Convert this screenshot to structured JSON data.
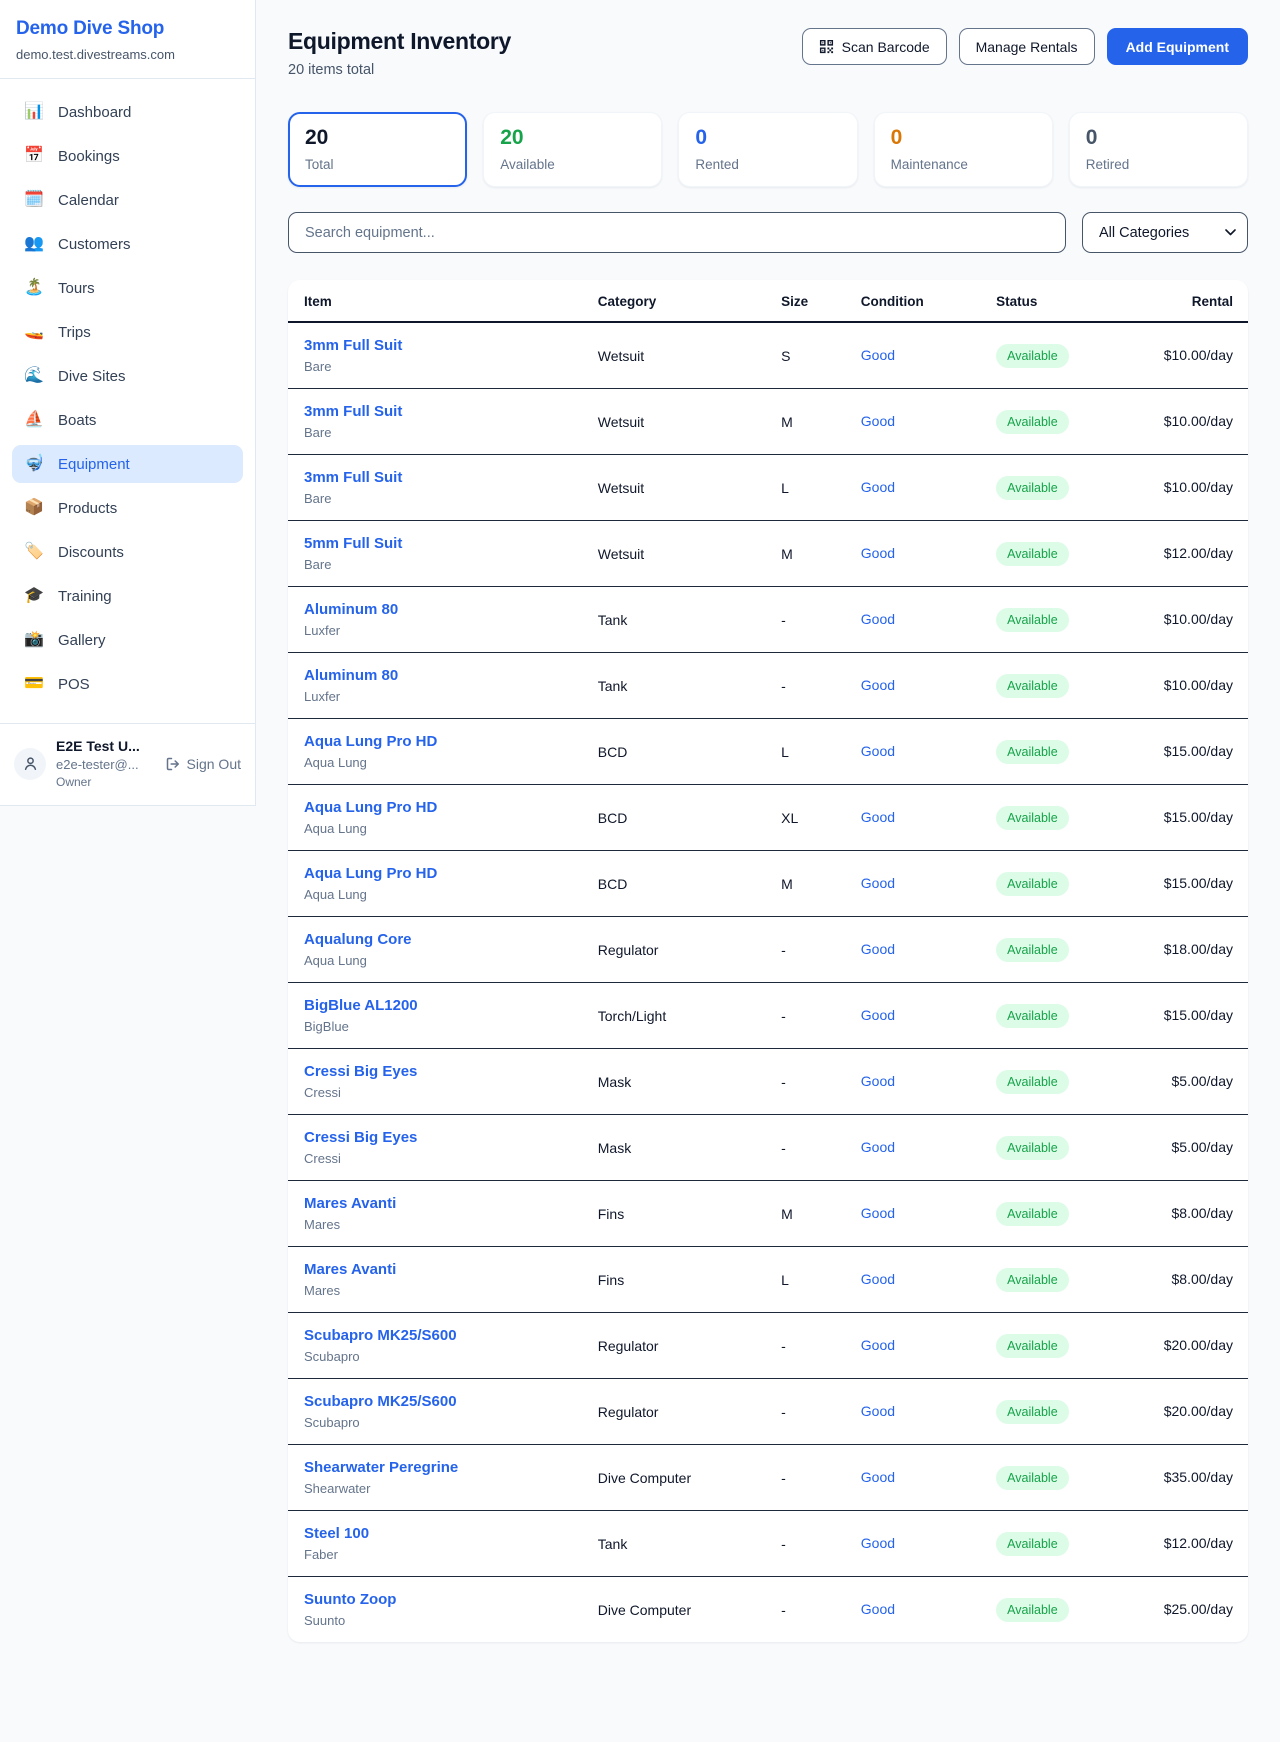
{
  "colors": {
    "accent": "#2563eb",
    "available_green": "#16a34a",
    "maintenance_orange": "#d97706",
    "retired_gray": "#475569"
  },
  "sidebar": {
    "brand": "Demo Dive Shop",
    "domain": "demo.test.divestreams.com",
    "items": [
      {
        "id": "dashboard",
        "label": "Dashboard",
        "icon": "📊",
        "icon_name": "bar-chart-icon",
        "active": false
      },
      {
        "id": "bookings",
        "label": "Bookings",
        "icon": "📅",
        "icon_name": "calendar-icon",
        "active": false
      },
      {
        "id": "calendar",
        "label": "Calendar",
        "icon": "🗓️",
        "icon_name": "spiral-calendar-icon",
        "active": false
      },
      {
        "id": "customers",
        "label": "Customers",
        "icon": "👥",
        "icon_name": "people-icon",
        "active": false
      },
      {
        "id": "tours",
        "label": "Tours",
        "icon": "🏝️",
        "icon_name": "island-icon",
        "active": false
      },
      {
        "id": "trips",
        "label": "Trips",
        "icon": "🚤",
        "icon_name": "speedboat-icon",
        "active": false
      },
      {
        "id": "dive-sites",
        "label": "Dive Sites",
        "icon": "🌊",
        "icon_name": "wave-icon",
        "active": false
      },
      {
        "id": "boats",
        "label": "Boats",
        "icon": "⛵",
        "icon_name": "sailboat-icon",
        "active": false
      },
      {
        "id": "equipment",
        "label": "Equipment",
        "icon": "🤿",
        "icon_name": "diving-mask-icon",
        "active": true
      },
      {
        "id": "products",
        "label": "Products",
        "icon": "📦",
        "icon_name": "package-icon",
        "active": false
      },
      {
        "id": "discounts",
        "label": "Discounts",
        "icon": "🏷️",
        "icon_name": "tag-icon",
        "active": false
      },
      {
        "id": "training",
        "label": "Training",
        "icon": "🎓",
        "icon_name": "graduation-cap-icon",
        "active": false
      },
      {
        "id": "gallery",
        "label": "Gallery",
        "icon": "📸",
        "icon_name": "camera-icon",
        "active": false
      },
      {
        "id": "pos",
        "label": "POS",
        "icon": "💳",
        "icon_name": "credit-card-icon",
        "active": false
      }
    ],
    "user": {
      "name": "E2E Test U...",
      "email": "e2e-tester@...",
      "role": "Owner",
      "signout_label": "Sign Out"
    }
  },
  "header": {
    "title": "Equipment Inventory",
    "subtitle": "20 items total",
    "scan_label": "Scan Barcode",
    "manage_label": "Manage Rentals",
    "add_label": "Add Equipment"
  },
  "stats": [
    {
      "value": "20",
      "label": "Total",
      "color": "#0f172a",
      "selected": true
    },
    {
      "value": "20",
      "label": "Available",
      "color": "#16a34a",
      "selected": false
    },
    {
      "value": "0",
      "label": "Rented",
      "color": "#2563eb",
      "selected": false
    },
    {
      "value": "0",
      "label": "Maintenance",
      "color": "#d97706",
      "selected": false
    },
    {
      "value": "0",
      "label": "Retired",
      "color": "#475569",
      "selected": false
    }
  ],
  "filters": {
    "search_placeholder": "Search equipment...",
    "category_selected": "All Categories"
  },
  "table": {
    "columns": [
      "Item",
      "Category",
      "Size",
      "Condition",
      "Status",
      "Rental"
    ],
    "rows": [
      {
        "name": "3mm Full Suit",
        "brand": "Bare",
        "category": "Wetsuit",
        "size": "S",
        "condition": "Good",
        "status": "Available",
        "rental": "$10.00/day"
      },
      {
        "name": "3mm Full Suit",
        "brand": "Bare",
        "category": "Wetsuit",
        "size": "M",
        "condition": "Good",
        "status": "Available",
        "rental": "$10.00/day"
      },
      {
        "name": "3mm Full Suit",
        "brand": "Bare",
        "category": "Wetsuit",
        "size": "L",
        "condition": "Good",
        "status": "Available",
        "rental": "$10.00/day"
      },
      {
        "name": "5mm Full Suit",
        "brand": "Bare",
        "category": "Wetsuit",
        "size": "M",
        "condition": "Good",
        "status": "Available",
        "rental": "$12.00/day"
      },
      {
        "name": "Aluminum 80",
        "brand": "Luxfer",
        "category": "Tank",
        "size": "-",
        "condition": "Good",
        "status": "Available",
        "rental": "$10.00/day"
      },
      {
        "name": "Aluminum 80",
        "brand": "Luxfer",
        "category": "Tank",
        "size": "-",
        "condition": "Good",
        "status": "Available",
        "rental": "$10.00/day"
      },
      {
        "name": "Aqua Lung Pro HD",
        "brand": "Aqua Lung",
        "category": "BCD",
        "size": "L",
        "condition": "Good",
        "status": "Available",
        "rental": "$15.00/day"
      },
      {
        "name": "Aqua Lung Pro HD",
        "brand": "Aqua Lung",
        "category": "BCD",
        "size": "XL",
        "condition": "Good",
        "status": "Available",
        "rental": "$15.00/day"
      },
      {
        "name": "Aqua Lung Pro HD",
        "brand": "Aqua Lung",
        "category": "BCD",
        "size": "M",
        "condition": "Good",
        "status": "Available",
        "rental": "$15.00/day"
      },
      {
        "name": "Aqualung Core",
        "brand": "Aqua Lung",
        "category": "Regulator",
        "size": "-",
        "condition": "Good",
        "status": "Available",
        "rental": "$18.00/day"
      },
      {
        "name": "BigBlue AL1200",
        "brand": "BigBlue",
        "category": "Torch/Light",
        "size": "-",
        "condition": "Good",
        "status": "Available",
        "rental": "$15.00/day"
      },
      {
        "name": "Cressi Big Eyes",
        "brand": "Cressi",
        "category": "Mask",
        "size": "-",
        "condition": "Good",
        "status": "Available",
        "rental": "$5.00/day"
      },
      {
        "name": "Cressi Big Eyes",
        "brand": "Cressi",
        "category": "Mask",
        "size": "-",
        "condition": "Good",
        "status": "Available",
        "rental": "$5.00/day"
      },
      {
        "name": "Mares Avanti",
        "brand": "Mares",
        "category": "Fins",
        "size": "M",
        "condition": "Good",
        "status": "Available",
        "rental": "$8.00/day"
      },
      {
        "name": "Mares Avanti",
        "brand": "Mares",
        "category": "Fins",
        "size": "L",
        "condition": "Good",
        "status": "Available",
        "rental": "$8.00/day"
      },
      {
        "name": "Scubapro MK25/S600",
        "brand": "Scubapro",
        "category": "Regulator",
        "size": "-",
        "condition": "Good",
        "status": "Available",
        "rental": "$20.00/day"
      },
      {
        "name": "Scubapro MK25/S600",
        "brand": "Scubapro",
        "category": "Regulator",
        "size": "-",
        "condition": "Good",
        "status": "Available",
        "rental": "$20.00/day"
      },
      {
        "name": "Shearwater Peregrine",
        "brand": "Shearwater",
        "category": "Dive Computer",
        "size": "-",
        "condition": "Good",
        "status": "Available",
        "rental": "$35.00/day"
      },
      {
        "name": "Steel 100",
        "brand": "Faber",
        "category": "Tank",
        "size": "-",
        "condition": "Good",
        "status": "Available",
        "rental": "$12.00/day"
      },
      {
        "name": "Suunto Zoop",
        "brand": "Suunto",
        "category": "Dive Computer",
        "size": "-",
        "condition": "Good",
        "status": "Available",
        "rental": "$25.00/day"
      }
    ]
  }
}
